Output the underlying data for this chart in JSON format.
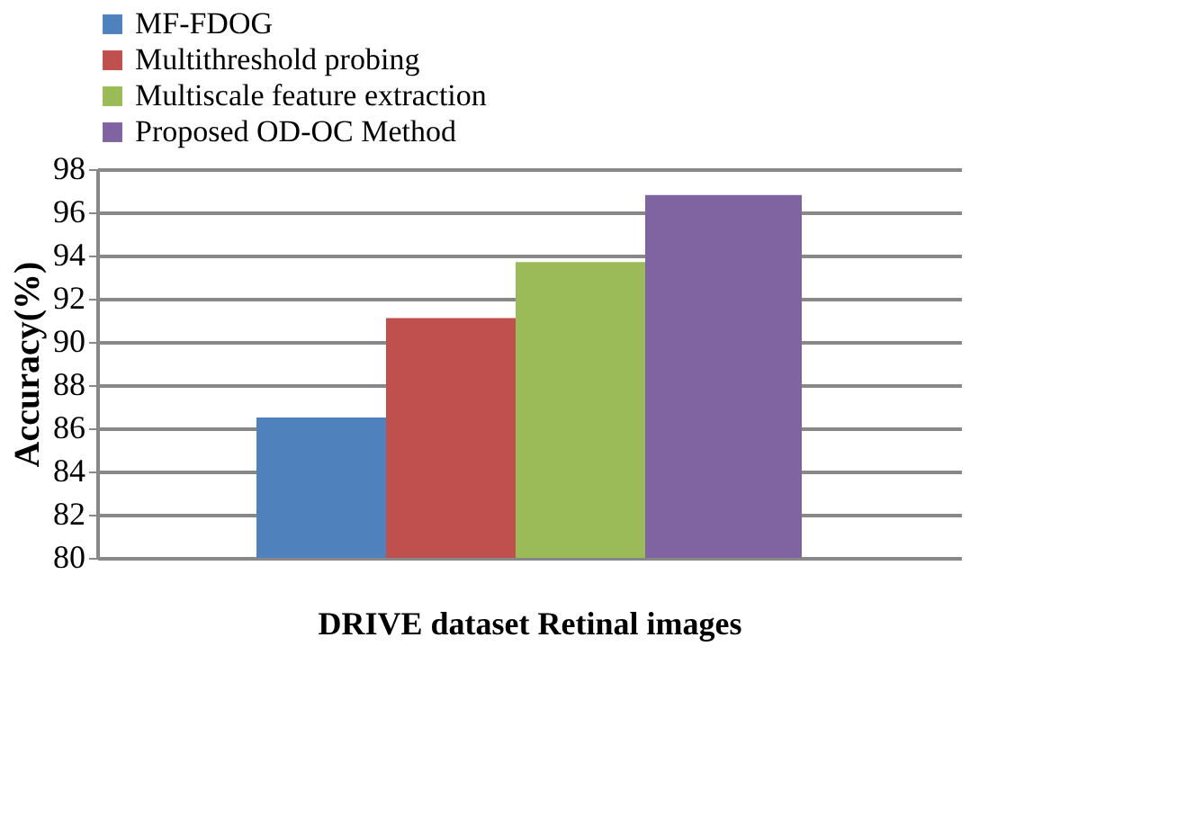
{
  "chart_data": {
    "type": "bar",
    "categories": [
      null
    ],
    "series": [
      {
        "name": "MF-FDOG",
        "color": "#4f81bd",
        "values": [
          86.5
        ]
      },
      {
        "name": "Multithreshold probing",
        "color": "#c0504d",
        "values": [
          91.1
        ]
      },
      {
        "name": "Multiscale feature extraction",
        "color": "#9bbb59",
        "values": [
          93.7
        ]
      },
      {
        "name": "Proposed OD-OC Method",
        "color": "#8064a2",
        "values": [
          96.8
        ]
      }
    ],
    "ylabel": "Accuracy(%)",
    "xlabel": "DRIVE  dataset Retinal images",
    "ylim": [
      80,
      98
    ],
    "yticks": [
      80,
      82,
      84,
      86,
      88,
      90,
      92,
      94,
      96,
      98
    ],
    "grid": "y",
    "legend": "top"
  }
}
